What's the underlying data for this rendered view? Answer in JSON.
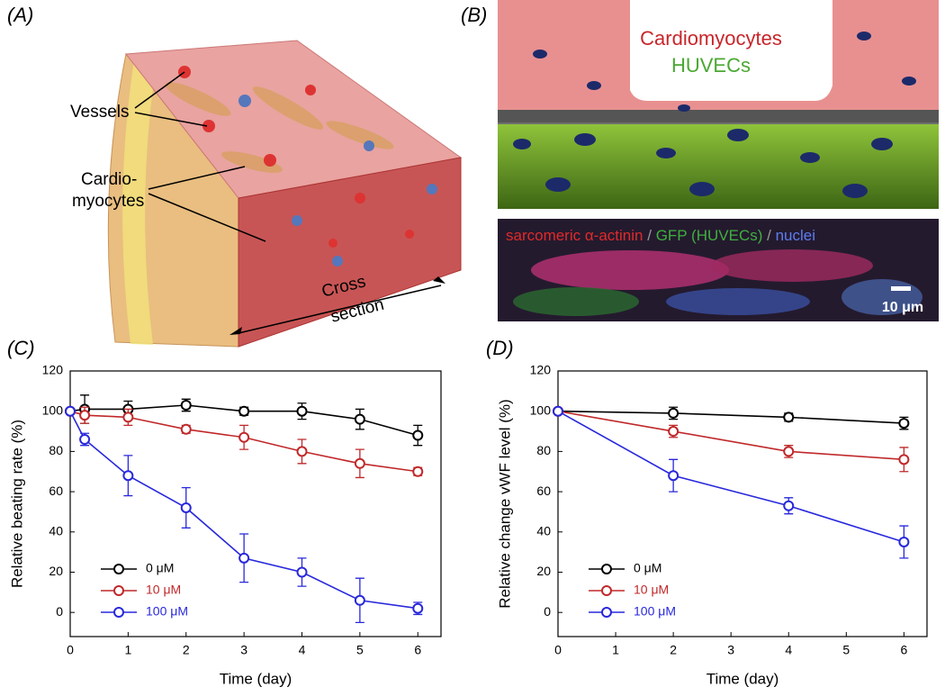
{
  "panels": {
    "a": {
      "label": "(A)",
      "vessels": "Vessels",
      "cardio": [
        "Cardio-",
        "myocytes"
      ],
      "cross": [
        "Cross",
        "section"
      ]
    },
    "b": {
      "label": "(B)",
      "cardiomyocytes": "Cardiomyocytes",
      "huvecs": "HUVECs",
      "stain": [
        "sarcomeric α-actinin",
        "/",
        "GFP (HUVECs)",
        "/",
        "nuclei"
      ],
      "scale": "10 μm"
    }
  },
  "chart_data": [
    {
      "type": "line",
      "panel_label": "(C)",
      "x_label": "Time (day)",
      "y_label": "Relative beating rate (%)",
      "x": [
        0,
        0.25,
        1,
        2,
        3,
        4,
        5,
        6
      ],
      "xlim": [
        0,
        6.4
      ],
      "xticks": [
        0,
        1,
        2,
        3,
        4,
        5,
        6
      ],
      "ylim": [
        -12,
        120
      ],
      "yticks": [
        0,
        20,
        40,
        60,
        80,
        100,
        120
      ],
      "legend": "lower left",
      "series": [
        {
          "name": "0 μM",
          "color": "#000000",
          "values": [
            100,
            101,
            101,
            103,
            100,
            100,
            96,
            88
          ],
          "errors": [
            0,
            7,
            4,
            3,
            2,
            4,
            5,
            5
          ]
        },
        {
          "name": "10 μM",
          "color": "#c0282a",
          "values": [
            100,
            98,
            97,
            91,
            87,
            80,
            74,
            70
          ],
          "errors": [
            0,
            4,
            4,
            2,
            6,
            6,
            7,
            2
          ]
        },
        {
          "name": "100 μM",
          "color": "#2828dc",
          "values": [
            100,
            86,
            68,
            52,
            27,
            20,
            6,
            2
          ],
          "errors": [
            0,
            3,
            10,
            10,
            12,
            7,
            11,
            3
          ]
        }
      ]
    },
    {
      "type": "line",
      "panel_label": "(D)",
      "x_label": "Time (day)",
      "y_label": "Relative change vWF level (%)",
      "x": [
        0,
        2,
        4,
        6
      ],
      "xlim": [
        0,
        6.4
      ],
      "xticks": [
        0,
        1,
        2,
        3,
        4,
        5,
        6
      ],
      "ylim": [
        -12,
        120
      ],
      "yticks": [
        0,
        20,
        40,
        60,
        80,
        100,
        120
      ],
      "legend": "lower left",
      "series": [
        {
          "name": "0 μM",
          "color": "#000000",
          "values": [
            100,
            99,
            97,
            94
          ],
          "errors": [
            0,
            3,
            2,
            3
          ]
        },
        {
          "name": "10 μM",
          "color": "#c0282a",
          "values": [
            100,
            90,
            80,
            76
          ],
          "errors": [
            0,
            3,
            3,
            6
          ]
        },
        {
          "name": "100 μM",
          "color": "#2828dc",
          "values": [
            100,
            68,
            53,
            35
          ],
          "errors": [
            0,
            8,
            4,
            8
          ]
        }
      ]
    }
  ]
}
